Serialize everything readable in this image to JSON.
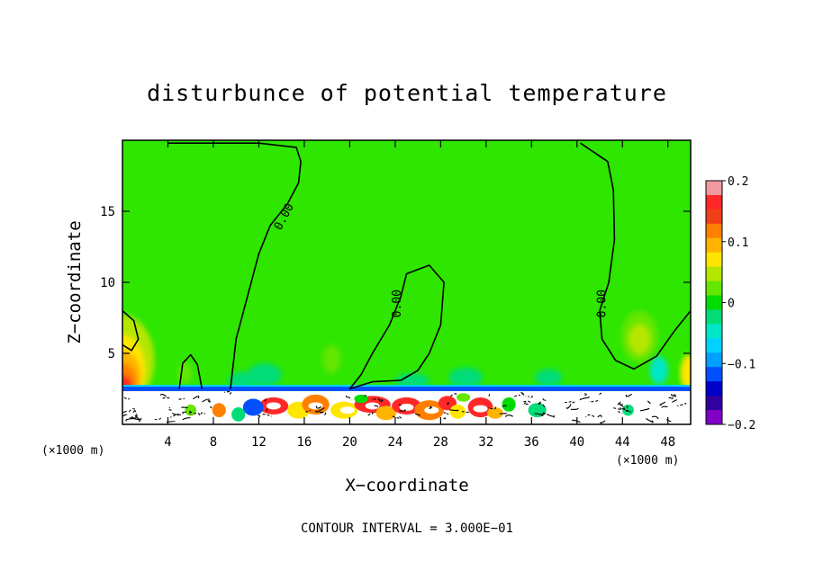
{
  "chart_data": {
    "type": "contour",
    "title": "disturbunce of potential temperature",
    "xlabel": "X−coordinate",
    "ylabel": "Z−coordinate",
    "x_unit": "(×1000 m)",
    "y_unit": "(×1000 m)",
    "xlim": [
      0,
      50
    ],
    "ylim": [
      0,
      20
    ],
    "x_ticks": [
      4,
      8,
      12,
      16,
      20,
      24,
      28,
      32,
      36,
      40,
      44,
      48
    ],
    "x_tick_labels": [
      "4",
      "8",
      "12",
      "16",
      "20",
      "24",
      "28",
      "32",
      "36",
      "40",
      "44",
      "48"
    ],
    "y_ticks": [
      5,
      10,
      15
    ],
    "y_tick_labels": [
      "5",
      "10",
      "15"
    ],
    "colorbar": {
      "range": [
        -0.2,
        0.2
      ],
      "ticks": [
        0.2,
        0.1,
        0,
        -0.1,
        -0.2
      ],
      "tick_labels": [
        "0.2",
        "0.1",
        "0",
        "−0.1",
        "−0.2"
      ],
      "colors": [
        "#f09aa0",
        "#ff2828",
        "#f04018",
        "#ff8000",
        "#ffb400",
        "#ffe600",
        "#b4e600",
        "#64e600",
        "#00dc00",
        "#00dc78",
        "#00e6c8",
        "#00d2ff",
        "#00a0ff",
        "#0050ff",
        "#0000cd",
        "#3000a0",
        "#8000c8"
      ]
    },
    "contour_interval": "CONTOUR INTERVAL = 3.000E−01",
    "contour_labels": [
      "0.00",
      "0.00",
      "0.00"
    ],
    "contours_zero": [
      [
        [
          9.5,
          2.5
        ],
        [
          10,
          6
        ],
        [
          11,
          9
        ],
        [
          12,
          12
        ],
        [
          13,
          14
        ],
        [
          14.5,
          15.5
        ],
        [
          15.5,
          17
        ],
        [
          15.7,
          18.5
        ],
        [
          15.3,
          19.5
        ],
        [
          12,
          19.8
        ],
        [
          4,
          19.8
        ]
      ],
      [
        [
          0,
          8
        ],
        [
          1,
          7.3
        ],
        [
          1.4,
          6
        ],
        [
          0.8,
          5.2
        ],
        [
          0,
          5.6
        ]
      ],
      [
        [
          5,
          2.5
        ],
        [
          5.3,
          4.3
        ],
        [
          6,
          4.9
        ],
        [
          6.6,
          4.2
        ],
        [
          7,
          2.5
        ]
      ],
      [
        [
          20,
          2.5
        ],
        [
          21,
          3.5
        ],
        [
          22,
          5
        ],
        [
          23.5,
          7
        ],
        [
          24.5,
          9
        ],
        [
          25,
          10.6
        ],
        [
          27,
          11.2
        ],
        [
          28.3,
          10
        ],
        [
          28,
          7
        ],
        [
          27,
          5
        ],
        [
          26,
          3.8
        ],
        [
          24.5,
          3.1
        ],
        [
          22,
          3
        ],
        [
          20,
          2.5
        ]
      ],
      [
        [
          40.3,
          19.8
        ],
        [
          42.7,
          18.5
        ],
        [
          43.2,
          16.5
        ],
        [
          43.3,
          13
        ],
        [
          42.8,
          10
        ],
        [
          42,
          8
        ],
        [
          42.2,
          6
        ],
        [
          43.4,
          4.5
        ],
        [
          45,
          3.9
        ],
        [
          47,
          4.8
        ],
        [
          48.6,
          6.6
        ],
        [
          50,
          8
        ]
      ]
    ],
    "contour_label_positions": [
      [
        14.5,
        14.5
      ],
      [
        24.5,
        8.5
      ],
      [
        42.5,
        8.5
      ]
    ]
  }
}
